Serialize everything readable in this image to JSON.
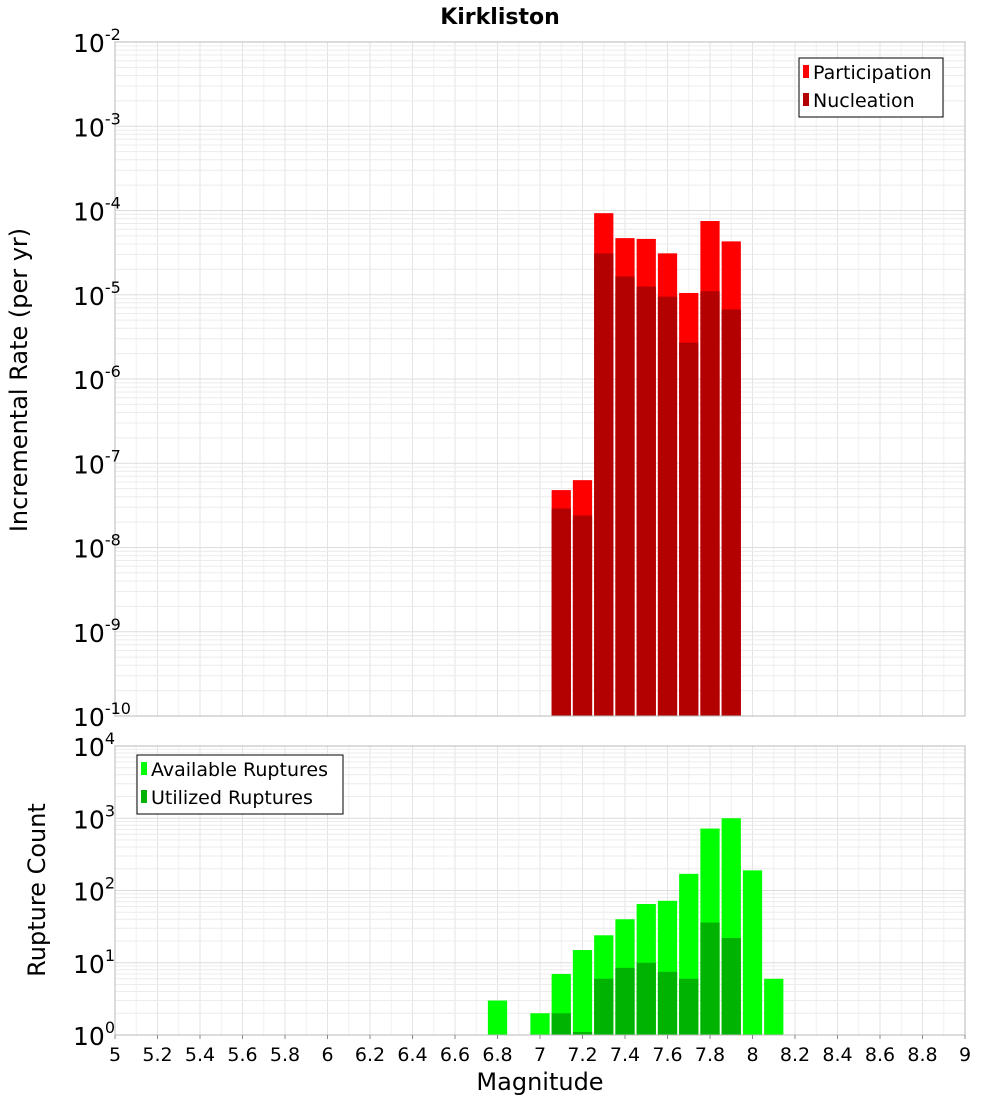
{
  "chart_data": [
    {
      "type": "bar",
      "title": "Kirkliston",
      "xlabel": "Magnitude",
      "ylabel": "Incremental Rate (per yr)",
      "yscale": "log",
      "ylim_exp": [
        -10,
        -2
      ],
      "xlim": [
        5,
        9
      ],
      "bin_width": 0.1,
      "grid": true,
      "legend_position": "top-right",
      "series": [
        {
          "name": "Participation",
          "color": "#ff0000",
          "x": [
            7.1,
            7.2,
            7.3,
            7.4,
            7.5,
            7.6,
            7.7,
            7.8,
            7.9
          ],
          "values": [
            4.8e-08,
            6.3e-08,
            9.3e-05,
            4.7e-05,
            4.6e-05,
            3.1e-05,
            1.05e-05,
            7.5e-05,
            4.3e-05
          ]
        },
        {
          "name": "Nucleation",
          "color": "#b30000",
          "x": [
            7.1,
            7.2,
            7.3,
            7.4,
            7.5,
            7.6,
            7.7,
            7.8,
            7.9
          ],
          "values": [
            2.9e-08,
            2.4e-08,
            3.1e-05,
            1.65e-05,
            1.25e-05,
            9.5e-06,
            2.7e-06,
            1.1e-05,
            6.7e-06
          ]
        }
      ]
    },
    {
      "type": "bar",
      "xlabel": "Magnitude",
      "ylabel": "Rupture Count",
      "yscale": "log",
      "ylim_exp": [
        0,
        4
      ],
      "xlim": [
        5,
        9
      ],
      "bin_width": 0.1,
      "grid": true,
      "legend_position": "top-left",
      "x_ticks": [
        "5",
        "5.2",
        "5.4",
        "5.6",
        "5.8",
        "6",
        "6.2",
        "6.4",
        "6.6",
        "6.8",
        "7",
        "7.2",
        "7.4",
        "7.6",
        "7.8",
        "8",
        "8.2",
        "8.4",
        "8.6",
        "8.8",
        "9"
      ],
      "series": [
        {
          "name": "Available Ruptures",
          "color": "#00ff00",
          "x": [
            6.8,
            7.0,
            7.1,
            7.2,
            7.3,
            7.4,
            7.5,
            7.6,
            7.7,
            7.8,
            7.9,
            8.0,
            8.1
          ],
          "values": [
            3,
            2,
            7,
            15,
            24,
            40,
            65,
            72,
            170,
            720,
            1000,
            190,
            6
          ]
        },
        {
          "name": "Utilized Ruptures",
          "color": "#00b300",
          "x": [
            7.1,
            7.2,
            7.3,
            7.4,
            7.5,
            7.6,
            7.7,
            7.8,
            7.9
          ],
          "values": [
            2,
            1.1,
            6,
            8.5,
            10,
            7.5,
            6,
            36,
            22
          ]
        }
      ]
    }
  ]
}
